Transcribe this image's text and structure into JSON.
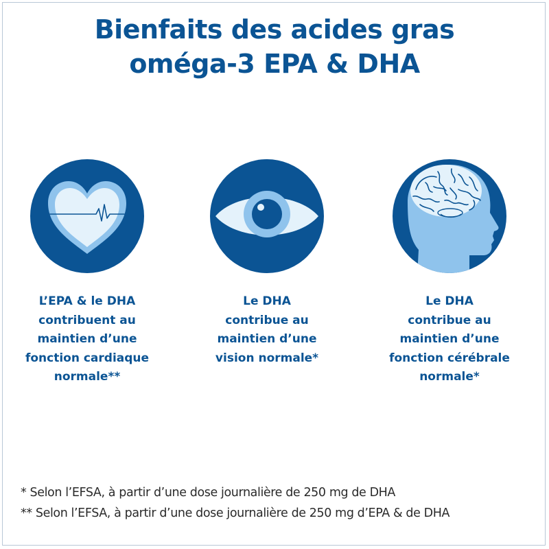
{
  "title": {
    "line1": "Bienfaits des acides gras",
    "line2": "oméga-3 EPA & DHA"
  },
  "benefits": [
    {
      "icon": "heart-icon",
      "lines": [
        "L’EPA & le DHA",
        "contribuent au",
        "maintien d’une",
        "fonction cardiaque",
        "normale**"
      ]
    },
    {
      "icon": "eye-icon",
      "lines": [
        "Le DHA",
        "contribue au",
        "maintien d’une",
        "vision normale*"
      ]
    },
    {
      "icon": "brain-head-icon",
      "lines": [
        "Le DHA",
        "contribue au",
        "maintien d’une",
        "fonction cérébrale",
        "normale*"
      ]
    }
  ],
  "footnotes": [
    "* Selon l’EFSA, à partir d’une dose journalière de 250 mg de DHA",
    "** Selon l’EFSA, à partir d’une dose journalière de 250 mg d’EPA & de DHA"
  ],
  "colors": {
    "primary": "#0b5494",
    "light_blue": "#8fc3ec",
    "pale": "#e4f2fb",
    "text": "#2a2a2a"
  }
}
